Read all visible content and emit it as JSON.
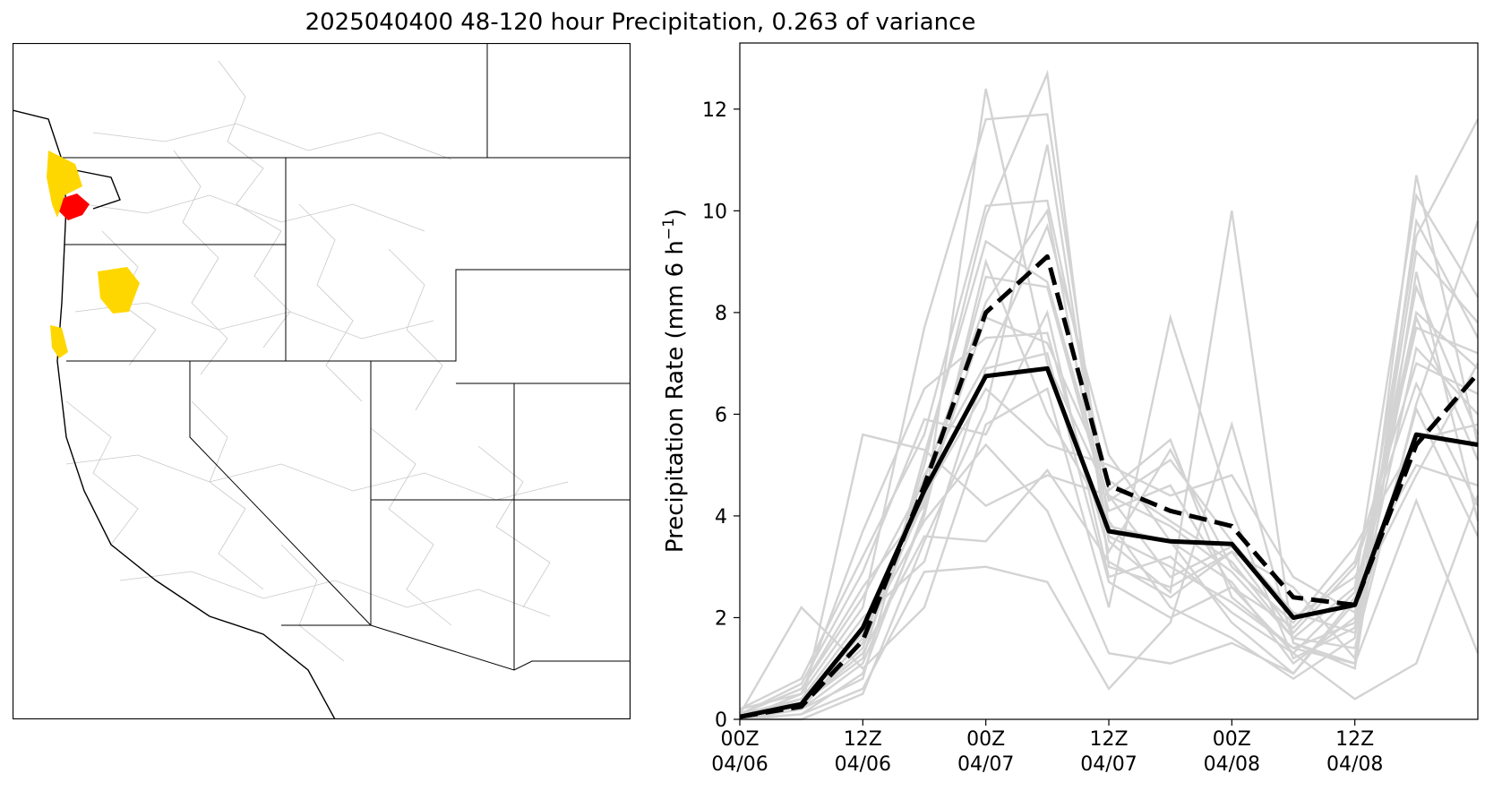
{
  "title": "2025040400 48-120 hour Precipitation, 0.263 of variance",
  "map": {
    "colors": {
      "high": "#ff0000",
      "medium": "#ffd700",
      "border": "#000000",
      "basin": "#c8c8c8"
    }
  },
  "chart_data": {
    "type": "line",
    "title": "",
    "xlabel": "",
    "ylabel": "Precipitation Rate (mm 6 h",
    "ylabel_sup": "−1",
    "ylabel_end": ")",
    "ylim": [
      0,
      13.3
    ],
    "y_ticks": [
      0,
      2,
      4,
      6,
      8,
      10,
      12
    ],
    "x_ticks": [
      {
        "hour": 0,
        "label1": "00Z",
        "label2": "04/06"
      },
      {
        "hour": 12,
        "label1": "12Z",
        "label2": "04/06"
      },
      {
        "hour": 24,
        "label1": "00Z",
        "label2": "04/07"
      },
      {
        "hour": 36,
        "label1": "12Z",
        "label2": "04/07"
      },
      {
        "hour": 48,
        "label1": "00Z",
        "label2": "04/08"
      },
      {
        "hour": 60,
        "label1": "12Z",
        "label2": "04/08"
      }
    ],
    "xlim_hours": [
      0,
      72
    ],
    "x_hours": [
      0,
      6,
      12,
      18,
      24,
      30,
      36,
      42,
      48,
      54,
      60,
      66,
      72
    ],
    "colors": {
      "ensemble": "#d3d3d3",
      "mean": "#000000",
      "dashed": "#000000"
    },
    "series": [
      {
        "style": "solid",
        "values": [
          0.05,
          0.3,
          1.8,
          4.5,
          6.75,
          6.9,
          3.7,
          3.5,
          3.45,
          2.0,
          2.25,
          5.6,
          5.4
        ]
      },
      {
        "style": "dashed",
        "values": [
          0.05,
          0.25,
          1.55,
          4.6,
          8.0,
          9.1,
          4.6,
          4.1,
          3.8,
          2.4,
          2.25,
          5.4,
          6.8
        ]
      }
    ],
    "ensemble": [
      [
        0.0,
        0.1,
        0.9,
        4.1,
        12.4,
        7.0,
        4.4,
        3.8,
        2.9,
        1.6,
        1.4,
        6.2,
        9.8
      ],
      [
        0.1,
        0.3,
        1.2,
        5.0,
        9.9,
        12.7,
        3.0,
        2.6,
        3.3,
        2.6,
        1.2,
        10.7,
        5.4
      ],
      [
        0.0,
        0.5,
        2.2,
        7.7,
        11.8,
        11.9,
        3.8,
        3.5,
        2.7,
        1.1,
        2.0,
        9.5,
        11.8
      ],
      [
        0.2,
        0.8,
        3.2,
        5.6,
        10.1,
        10.2,
        4.5,
        5.5,
        2.4,
        1.4,
        1.1,
        9.8,
        7.5
      ],
      [
        0.0,
        0.0,
        0.5,
        3.5,
        6.1,
        11.3,
        3.5,
        2.5,
        10.0,
        1.5,
        1.0,
        8.8,
        3.9
      ],
      [
        0.1,
        2.2,
        1.0,
        2.2,
        5.8,
        6.5,
        2.2,
        7.9,
        4.1,
        1.2,
        1.8,
        7.3,
        6.0
      ],
      [
        0.0,
        0.2,
        5.6,
        5.3,
        4.2,
        4.8,
        4.4,
        2.8,
        3.4,
        2.0,
        2.8,
        5.0,
        4.6
      ],
      [
        0.0,
        0.4,
        1.5,
        4.8,
        7.0,
        9.7,
        5.2,
        3.5,
        1.9,
        0.9,
        2.3,
        8.0,
        6.9
      ],
      [
        0.1,
        0.6,
        2.6,
        4.2,
        8.7,
        8.5,
        4.1,
        4.6,
        2.6,
        1.3,
        2.5,
        7.7,
        7.2
      ],
      [
        0.0,
        0.3,
        1.3,
        3.6,
        3.5,
        4.9,
        3.1,
        2.4,
        3.3,
        1.7,
        3.0,
        6.6,
        4.2
      ],
      [
        0.0,
        0.1,
        0.6,
        2.9,
        3.0,
        2.7,
        0.6,
        1.9,
        5.8,
        1.5,
        1.1,
        4.3,
        1.3
      ],
      [
        0.2,
        0.5,
        3.7,
        6.5,
        7.5,
        7.6,
        3.3,
        5.3,
        3.0,
        1.9,
        3.4,
        5.5,
        5.8
      ],
      [
        0.0,
        0.2,
        1.1,
        4.0,
        9.0,
        6.0,
        3.9,
        2.2,
        1.6,
        0.8,
        1.6,
        9.2,
        7.8
      ],
      [
        0.1,
        0.7,
        2.9,
        5.9,
        5.6,
        8.0,
        2.8,
        3.2,
        2.1,
        1.3,
        0.4,
        1.1,
        4.4
      ],
      [
        0.0,
        0.3,
        1.4,
        4.4,
        6.5,
        5.4,
        5.0,
        4.4,
        4.8,
        2.8,
        2.1,
        8.5,
        5.6
      ],
      [
        0.1,
        0.4,
        2.0,
        3.1,
        6.9,
        7.2,
        2.7,
        2.0,
        2.6,
        1.8,
        3.1,
        7.0,
        6.4
      ],
      [
        0.0,
        0.2,
        0.8,
        5.2,
        9.4,
        8.6,
        4.3,
        5.1,
        3.5,
        2.1,
        1.7,
        6.1,
        3.6
      ],
      [
        0.0,
        0.3,
        1.7,
        3.9,
        5.4,
        4.1,
        1.3,
        1.1,
        1.5,
        0.9,
        2.4,
        4.8,
        7.0
      ],
      [
        0.1,
        0.6,
        2.4,
        4.7,
        8.2,
        10.0,
        3.6,
        3.0,
        2.3,
        1.4,
        1.9,
        7.9,
        5.1
      ],
      [
        0.0,
        0.2,
        1.6,
        4.3,
        7.9,
        7.4,
        4.7,
        3.9,
        3.1,
        1.6,
        2.6,
        10.3,
        8.3
      ]
    ]
  }
}
